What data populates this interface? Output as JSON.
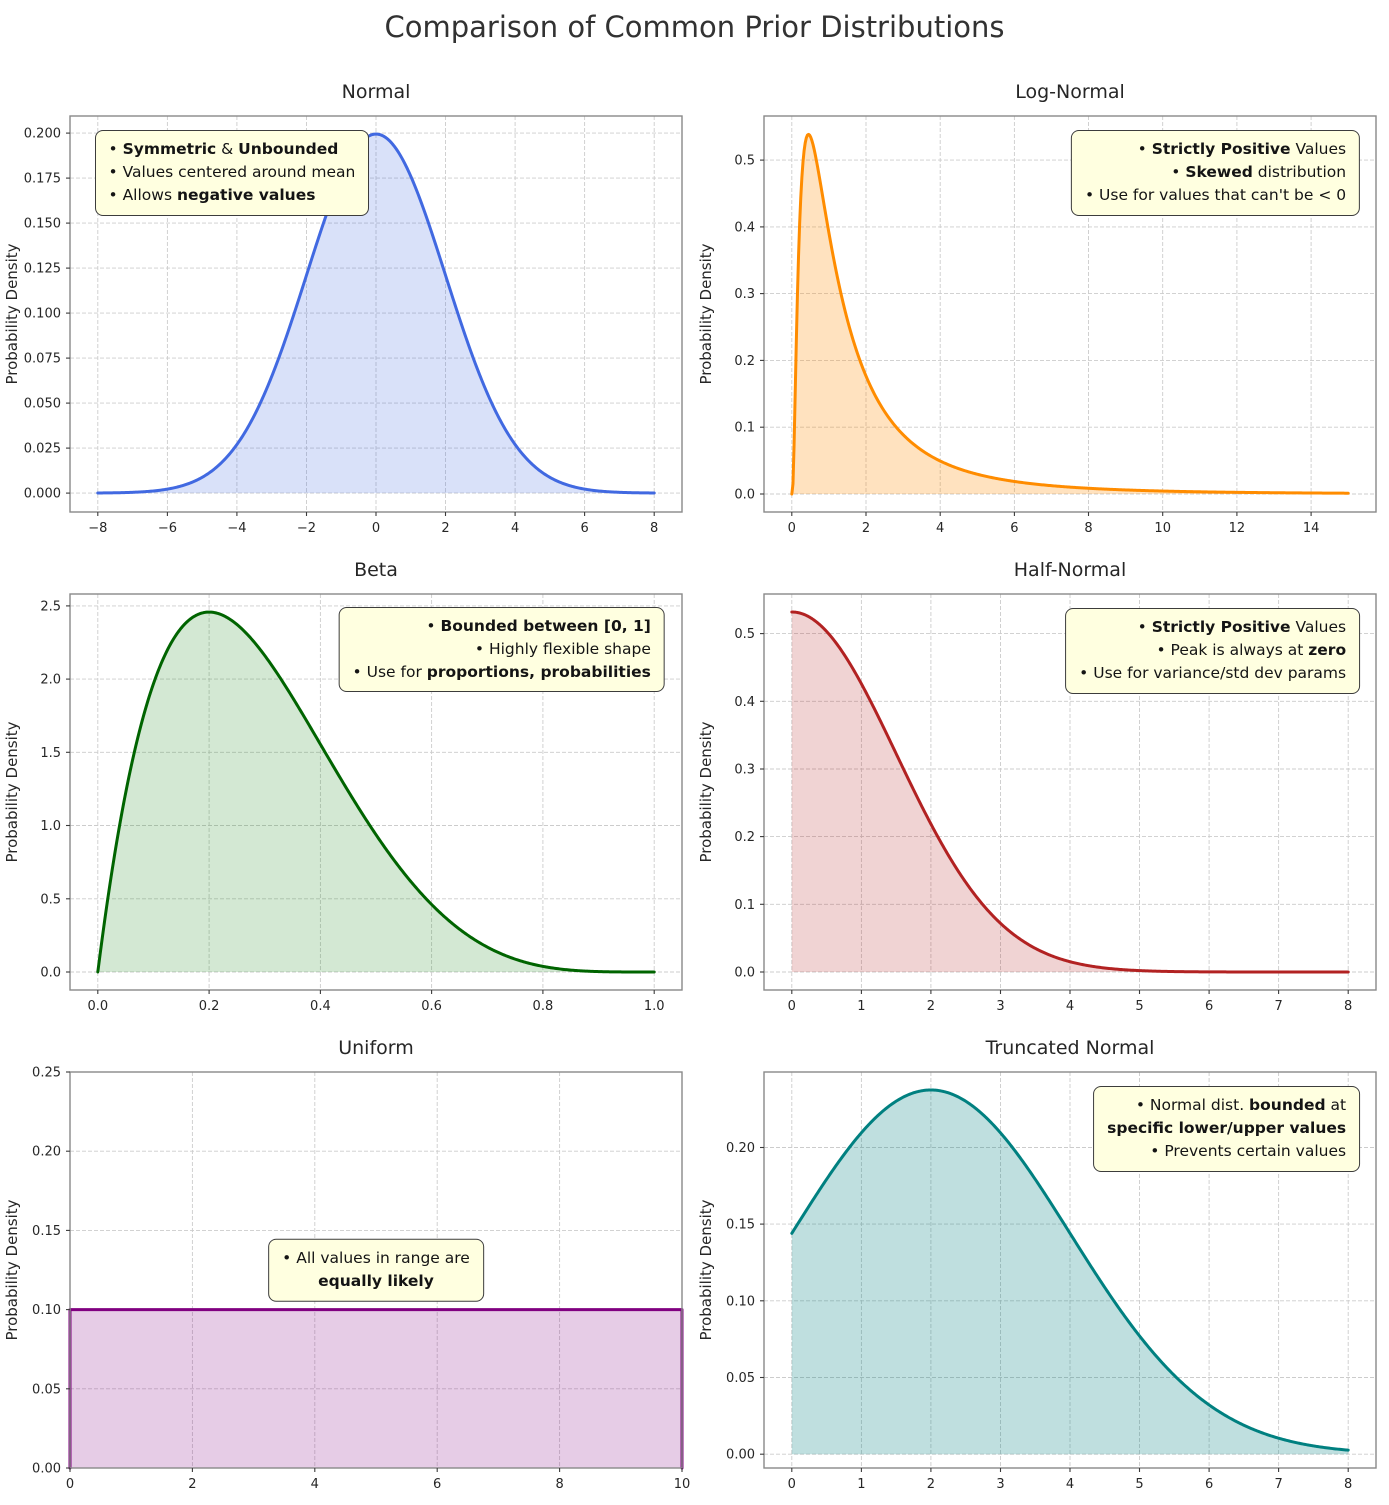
{
  "figure": {
    "title": "Comparison of Common Prior Distributions",
    "ylabel": "Probability Density"
  },
  "chart_data": [
    {
      "id": "normal",
      "type": "area",
      "title": "Normal",
      "ylabel": "Probability Density",
      "color": "#4169E1",
      "fill": "rgba(65,105,225,0.2)",
      "dist": {
        "type": "normal",
        "mu": 0,
        "sigma": 2
      },
      "x_range": [
        -8,
        8
      ],
      "xlim": [
        -8.8,
        8.8
      ],
      "ylim": [
        -0.0105,
        0.2095
      ],
      "xticks": {
        "values": [
          -8,
          -6,
          -4,
          -2,
          0,
          2,
          4,
          6,
          8
        ],
        "labels": [
          "−8",
          "−6",
          "−4",
          "−2",
          "0",
          "2",
          "4",
          "6",
          "8"
        ]
      },
      "yticks": {
        "values": [
          0,
          0.025,
          0.05,
          0.075,
          0.1,
          0.125,
          0.15,
          0.175,
          0.2
        ],
        "labels": [
          "0.000",
          "0.025",
          "0.050",
          "0.075",
          "0.100",
          "0.125",
          "0.150",
          "0.175",
          "0.200"
        ]
      },
      "sample_points": {
        "x": [
          -8,
          -6,
          -4,
          -2,
          0,
          2,
          4,
          6,
          8
        ],
        "y": [
          0.0001,
          0.0022,
          0.027,
          0.121,
          0.1995,
          0.121,
          0.027,
          0.0022,
          0.0001
        ]
      },
      "annotation": {
        "anchor": "tl",
        "fx": 0.04,
        "fy": 0.965,
        "align": "left",
        "lines": [
          [
            {
              "t": "• "
            },
            {
              "t": "Symmetric",
              "b": true
            },
            {
              "t": " & "
            },
            {
              "t": "Unbounded",
              "b": true
            }
          ],
          [
            {
              "t": "• Values centered around mean"
            }
          ],
          [
            {
              "t": "• Allows "
            },
            {
              "t": "negative values",
              "b": true
            }
          ]
        ]
      }
    },
    {
      "id": "lognormal",
      "type": "area",
      "title": "Log-Normal",
      "ylabel": "Probability Density",
      "color": "#FF8C00",
      "fill": "rgba(255,140,0,0.25)",
      "dist": {
        "type": "lognormal",
        "mu": 0.2,
        "sigma": 1
      },
      "x_range": [
        0.001,
        15
      ],
      "xlim": [
        -0.75,
        15.75
      ],
      "ylim": [
        -0.027,
        0.566
      ],
      "xticks": {
        "values": [
          0,
          2,
          4,
          6,
          8,
          10,
          12,
          14
        ],
        "labels": [
          "0",
          "2",
          "4",
          "6",
          "8",
          "10",
          "12",
          "14"
        ]
      },
      "yticks": {
        "values": [
          0,
          0.1,
          0.2,
          0.3,
          0.4,
          0.5
        ],
        "labels": [
          "0.0",
          "0.1",
          "0.2",
          "0.3",
          "0.4",
          "0.5"
        ]
      },
      "sample_points": {
        "x": [
          0.2,
          0.45,
          1,
          2,
          4,
          6,
          8,
          10,
          15
        ],
        "y": [
          0.388,
          0.539,
          0.391,
          0.177,
          0.049,
          0.019,
          0.009,
          0.004,
          0.001
        ]
      },
      "annotation": {
        "anchor": "tr",
        "fx": 0.974,
        "fy": 0.965,
        "align": "right",
        "lines": [
          [
            {
              "t": "• "
            },
            {
              "t": "Strictly Positive",
              "b": true
            },
            {
              "t": " Values"
            }
          ],
          [
            {
              "t": "• "
            },
            {
              "t": "Skewed",
              "b": true
            },
            {
              "t": " distribution"
            }
          ],
          [
            {
              "t": "• Use for values that can't be < 0"
            }
          ]
        ]
      }
    },
    {
      "id": "beta",
      "type": "area",
      "title": "Beta",
      "ylabel": "Probability Density",
      "color": "#006400",
      "fill": "rgba(34,139,34,0.2)",
      "dist": {
        "type": "beta",
        "a": 2,
        "b": 5,
        "coef": 30
      },
      "x_range": [
        0,
        1
      ],
      "xlim": [
        -0.05,
        1.05
      ],
      "ylim": [
        -0.123,
        2.581
      ],
      "xticks": {
        "values": [
          0,
          0.2,
          0.4,
          0.6,
          0.8,
          1.0
        ],
        "labels": [
          "0.0",
          "0.2",
          "0.4",
          "0.6",
          "0.8",
          "1.0"
        ]
      },
      "yticks": {
        "values": [
          0,
          0.5,
          1,
          1.5,
          2,
          2.5
        ],
        "labels": [
          "0.0",
          "0.5",
          "1.0",
          "1.5",
          "2.0",
          "2.5"
        ]
      },
      "sample_points": {
        "x": [
          0,
          0.1,
          0.2,
          0.3,
          0.4,
          0.5,
          0.6,
          0.7,
          0.8,
          0.9,
          1
        ],
        "y": [
          0,
          1.968,
          2.458,
          2.161,
          1.555,
          0.938,
          0.461,
          0.17,
          0.038,
          0.003,
          0
        ]
      },
      "annotation": {
        "anchor": "tr",
        "fx": 0.972,
        "fy": 0.968,
        "align": "right",
        "lines": [
          [
            {
              "t": "• "
            },
            {
              "t": "Bounded between [0, 1]",
              "b": true
            }
          ],
          [
            {
              "t": "• Highly flexible shape"
            }
          ],
          [
            {
              "t": "• Use for "
            },
            {
              "t": "proportions, probabilities",
              "b": true
            }
          ]
        ]
      }
    },
    {
      "id": "halfnormal",
      "type": "area",
      "title": "Half-Normal",
      "ylabel": "Probability Density",
      "color": "#B22222",
      "fill": "rgba(178,34,34,0.2)",
      "dist": {
        "type": "halfnormal",
        "sigma": 1.5
      },
      "x_range": [
        0,
        8
      ],
      "xlim": [
        -0.4,
        8.4
      ],
      "ylim": [
        -0.0266,
        0.5585
      ],
      "xticks": {
        "values": [
          0,
          1,
          2,
          3,
          4,
          5,
          6,
          7,
          8
        ],
        "labels": [
          "0",
          "1",
          "2",
          "3",
          "4",
          "5",
          "6",
          "7",
          "8"
        ]
      },
      "yticks": {
        "values": [
          0,
          0.1,
          0.2,
          0.3,
          0.4,
          0.5
        ],
        "labels": [
          "0.0",
          "0.1",
          "0.2",
          "0.3",
          "0.4",
          "0.5"
        ]
      },
      "sample_points": {
        "x": [
          0,
          0.5,
          1,
          1.5,
          2,
          2.5,
          3,
          4,
          5,
          6,
          8
        ],
        "y": [
          0.532,
          0.503,
          0.426,
          0.323,
          0.219,
          0.133,
          0.072,
          0.015,
          0.002,
          0.0002,
          0
        ]
      },
      "annotation": {
        "anchor": "tr",
        "fx": 0.974,
        "fy": 0.965,
        "align": "right",
        "lines": [
          [
            {
              "t": "• "
            },
            {
              "t": "Strictly Positive",
              "b": true
            },
            {
              "t": " Values"
            }
          ],
          [
            {
              "t": "• Peak is always at "
            },
            {
              "t": "zero",
              "b": true
            }
          ],
          [
            {
              "t": "• Use for variance/std dev params"
            }
          ]
        ]
      }
    },
    {
      "id": "uniform",
      "type": "area",
      "title": "Uniform",
      "ylabel": "Probability Density",
      "color": "#800080",
      "fill": "rgba(128,0,128,0.2)",
      "dist": {
        "type": "uniform",
        "a": 0,
        "b": 10,
        "height": 0.1
      },
      "x_range": [
        0,
        10
      ],
      "xlim": [
        0,
        10
      ],
      "ylim": [
        0,
        0.25
      ],
      "xticks": {
        "values": [
          0,
          2,
          4,
          6,
          8,
          10
        ],
        "labels": [
          "0",
          "2",
          "4",
          "6",
          "8",
          "10"
        ]
      },
      "yticks": {
        "values": [
          0,
          0.05,
          0.1,
          0.15,
          0.2,
          0.25
        ],
        "labels": [
          "0.00",
          "0.05",
          "0.10",
          "0.15",
          "0.20",
          "0.25"
        ]
      },
      "sample_points": {
        "x": [
          0,
          10
        ],
        "y": [
          0.1,
          0.1
        ]
      },
      "annotation": {
        "anchor": "c",
        "fx": 0.5,
        "fy": 0.5,
        "align": "center",
        "lines": [
          [
            {
              "t": "• All values in range are"
            }
          ],
          [
            {
              "t": "equally likely",
              "b": true
            }
          ]
        ]
      }
    },
    {
      "id": "truncnormal",
      "type": "area",
      "title": "Truncated Normal",
      "ylabel": "Probability Density",
      "color": "#008080",
      "fill": "rgba(0,128,128,0.25)",
      "dist": {
        "type": "truncnormal",
        "mu": 2,
        "sigma": 2,
        "a": 0,
        "b": 8,
        "norm": 0.84
      },
      "x_range": [
        0,
        8
      ],
      "xlim": [
        -0.4,
        8.4
      ],
      "ylim": [
        -0.009,
        0.2492
      ],
      "xticks": {
        "values": [
          0,
          1,
          2,
          3,
          4,
          5,
          6,
          7,
          8
        ],
        "labels": [
          "0",
          "1",
          "2",
          "3",
          "4",
          "5",
          "6",
          "7",
          "8"
        ]
      },
      "yticks": {
        "values": [
          0,
          0.05,
          0.1,
          0.15,
          0.2
        ],
        "labels": [
          "0.00",
          "0.05",
          "0.10",
          "0.15",
          "0.20"
        ]
      },
      "sample_points": {
        "x": [
          0,
          1,
          2,
          3,
          4,
          5,
          6,
          7,
          8
        ],
        "y": [
          0.144,
          0.21,
          0.237,
          0.21,
          0.144,
          0.077,
          0.032,
          0.01,
          0.003
        ]
      },
      "annotation": {
        "anchor": "tr",
        "fx": 0.974,
        "fy": 0.965,
        "align": "right",
        "lines": [
          [
            {
              "t": "• Normal dist. "
            },
            {
              "t": "bounded",
              "b": true
            },
            {
              "t": " at"
            }
          ],
          [
            {
              "t": "specific lower/upper values",
              "b": true
            }
          ],
          [
            {
              "t": "• Prevents certain values"
            }
          ]
        ]
      }
    }
  ]
}
